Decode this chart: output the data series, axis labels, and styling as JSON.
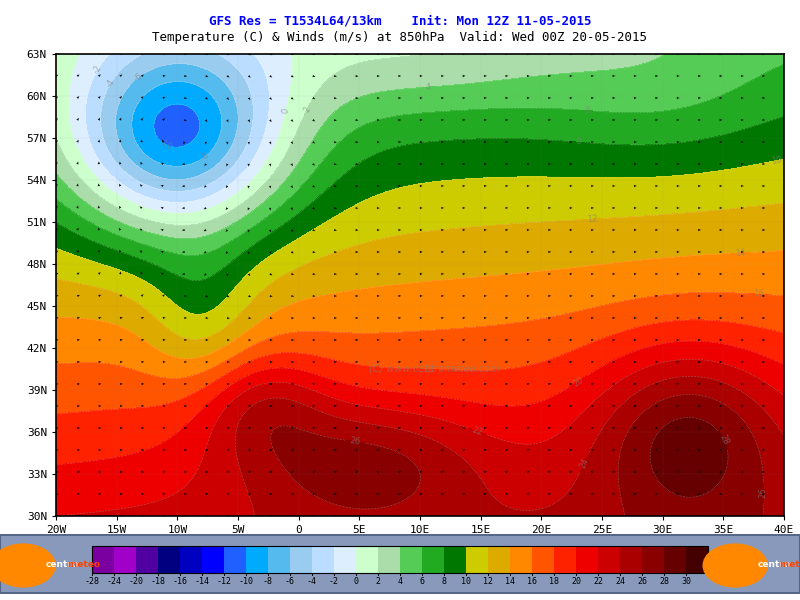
{
  "title1": "GFS Res = T1534L64/13km    Init: Mon 12Z 11-05-2015",
  "title2": "Temperature (C) & Winds (m/s) at 850hPa  Valid: Wed 00Z 20-05-2015",
  "title1_color": "#0000FF",
  "title2_color": "#000000",
  "lon_min": -20,
  "lon_max": 40,
  "lat_min": 30,
  "lat_max": 63,
  "xticks": [
    -20,
    -15,
    -10,
    -5,
    0,
    5,
    10,
    15,
    20,
    25,
    30,
    35,
    40
  ],
  "yticks": [
    30,
    33,
    36,
    39,
    42,
    45,
    48,
    51,
    54,
    57,
    60,
    63
  ],
  "xlabel_labels": [
    "20W",
    "15W",
    "10W",
    "5W",
    "0",
    "5E",
    "10E",
    "15E",
    "20E",
    "25E",
    "30E",
    "35E",
    "40E"
  ],
  "ylabel_labels": [
    "30N",
    "33N",
    "36N",
    "39N",
    "42N",
    "45N",
    "48N",
    "51N",
    "54N",
    "57N",
    "60N",
    "63N"
  ],
  "colorbar_levels": [
    -28,
    -24,
    -20,
    -18,
    -16,
    -14,
    -12,
    -10,
    -8,
    -6,
    -4,
    -2,
    0,
    2,
    4,
    6,
    8,
    10,
    12,
    14,
    16,
    18,
    20,
    22,
    24,
    26,
    28,
    30
  ],
  "colorbar_colors": [
    "#7B00A0",
    "#A000C8",
    "#5000A0",
    "#000080",
    "#0000C0",
    "#0000FF",
    "#2060FF",
    "#00AAFF",
    "#55BBEE",
    "#99CCEE",
    "#BBDDFF",
    "#DDEEFF",
    "#CCFFCC",
    "#AADDAA",
    "#55CC55",
    "#22AA22",
    "#007700",
    "#CCCC00",
    "#DDAA00",
    "#FF8800",
    "#FF5500",
    "#FF2200",
    "#EE0000",
    "#CC0000",
    "#AA0000",
    "#880000",
    "#660000",
    "#440000"
  ],
  "background_color": "#FFFFFF",
  "tick_fontsize": 8,
  "title1_fontsize": 9,
  "title2_fontsize": 9,
  "cb_bg_color": "#A8B8C8",
  "watermark": "(C) www.centrometeo.com"
}
